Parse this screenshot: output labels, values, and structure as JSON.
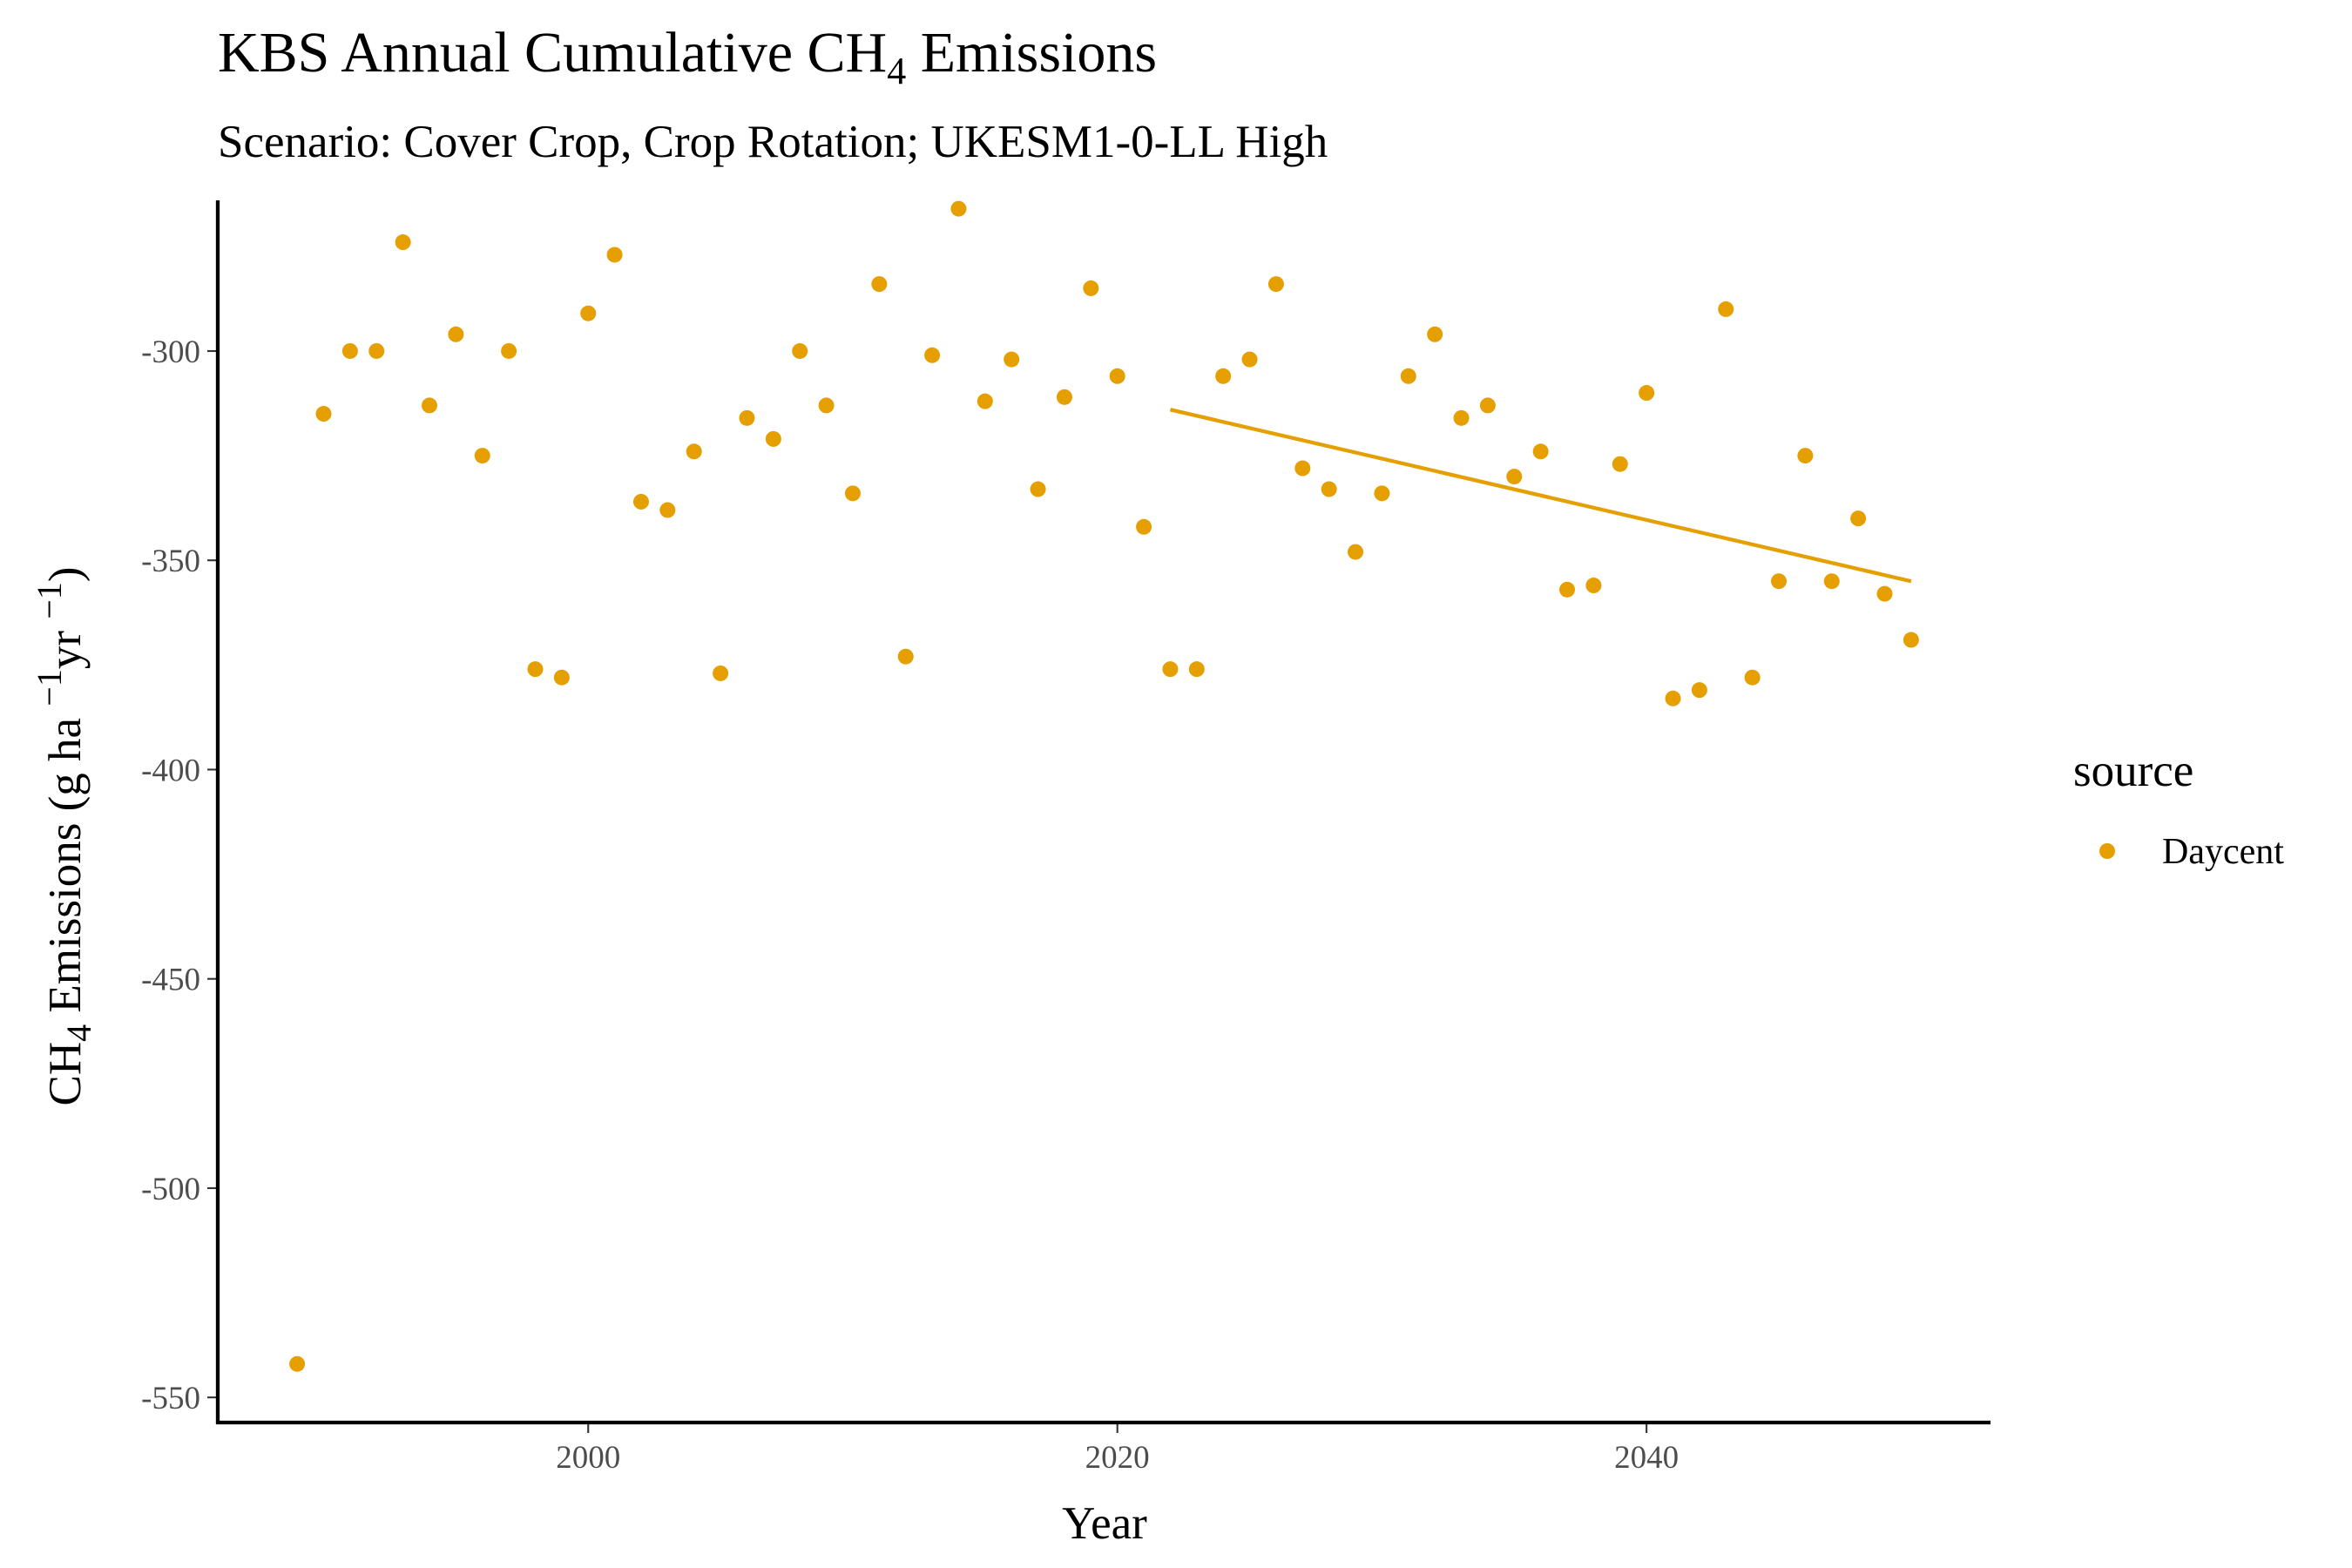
{
  "chart_data": {
    "type": "scatter",
    "title_main": "KBS Annual Cumulative CH",
    "title_sub_script": "4",
    "title_end": " Emissions",
    "subtitle": "Scenario: Cover Crop, Crop Rotation; UKESM1-0-LL High",
    "xlabel": "Year",
    "ylabel_parts": {
      "main": "CH",
      "sub": "4",
      "rest": " Emissions (g ha ",
      "sup1": "−1",
      "mid": "yr ",
      "sup2": "−1",
      "end": ")"
    },
    "xlim": [
      1986,
      2053
    ],
    "ylim": [
      -556,
      -264
    ],
    "x_ticks": [
      2000,
      2020,
      2040
    ],
    "x_tick_labels": [
      "2000",
      "2020",
      "2040"
    ],
    "y_ticks": [
      -300,
      -350,
      -400,
      -450,
      -500,
      -550
    ],
    "y_tick_labels": [
      "-300",
      "-350",
      "-400",
      "-450",
      "-500",
      "-550"
    ],
    "legend": {
      "title": "source",
      "entries": [
        "Daycent"
      ],
      "placement": "right"
    },
    "colors": {
      "Daycent": "#E69F00"
    },
    "series": [
      {
        "name": "Daycent",
        "x": [
          1989,
          1990,
          1991,
          1992,
          1993,
          1994,
          1995,
          1996,
          1997,
          1998,
          1999,
          2000,
          2001,
          2002,
          2003,
          2004,
          2005,
          2006,
          2007,
          2008,
          2009,
          2010,
          2011,
          2012,
          2013,
          2014,
          2015,
          2016,
          2017,
          2018,
          2019,
          2020,
          2021,
          2022,
          2023,
          2024,
          2025,
          2026,
          2027,
          2028,
          2029,
          2030,
          2031,
          2032,
          2033,
          2034,
          2035,
          2036,
          2037,
          2038,
          2039,
          2040,
          2041,
          2042,
          2043,
          2044,
          2045,
          2046,
          2047,
          2048,
          2049,
          2050
        ],
        "y": [
          -542,
          -315,
          -300,
          -300,
          -274,
          -313,
          -296,
          -325,
          -300,
          -376,
          -378,
          -291,
          -277,
          -336,
          -338,
          -324,
          -377,
          -316,
          -321,
          -300,
          -313,
          -334,
          -284,
          -373,
          -301,
          -266,
          -312,
          -302,
          -333,
          -311,
          -285,
          -306,
          -342,
          -376,
          -376,
          -306,
          -302,
          -284,
          -328,
          -333,
          -348,
          -334,
          -306,
          -296,
          -316,
          -313,
          -330,
          -324,
          -357,
          -356,
          -327,
          -310,
          -383,
          -381,
          -290,
          -378,
          -355,
          -325,
          -355,
          -340,
          -358,
          -369
        ]
      }
    ],
    "trend_line": {
      "x": [
        2022,
        2050
      ],
      "y": [
        -314,
        -355
      ]
    }
  }
}
